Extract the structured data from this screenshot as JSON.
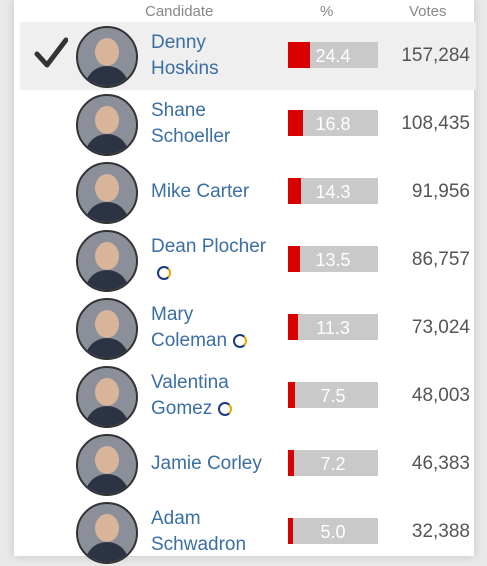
{
  "header": {
    "candidate": "Candidate",
    "percent": "%",
    "votes": "Votes"
  },
  "rows": [
    {
      "name": "Denny Hoskins",
      "percent": 24.4,
      "votes": "157,284",
      "winner": true,
      "badge": false
    },
    {
      "name": "Shane Schoeller",
      "percent": 16.8,
      "votes": "108,435",
      "winner": false,
      "badge": false
    },
    {
      "name": "Mike Carter",
      "percent": 14.3,
      "votes": "91,956",
      "winner": false,
      "badge": false
    },
    {
      "name": "Dean Plocher",
      "percent": 13.5,
      "votes": "86,757",
      "winner": false,
      "badge": true
    },
    {
      "name": "Mary Coleman",
      "percent": 11.3,
      "votes": "73,024",
      "winner": false,
      "badge": true
    },
    {
      "name": "Valentina Gomez",
      "percent": 7.5,
      "votes": "48,003",
      "winner": false,
      "badge": true
    },
    {
      "name": "Jamie Corley",
      "percent": 7.2,
      "votes": "46,383",
      "winner": false,
      "badge": false
    },
    {
      "name": "Adam Schwadron",
      "percent": 5.0,
      "votes": "32,388",
      "winner": false,
      "badge": false
    }
  ]
}
